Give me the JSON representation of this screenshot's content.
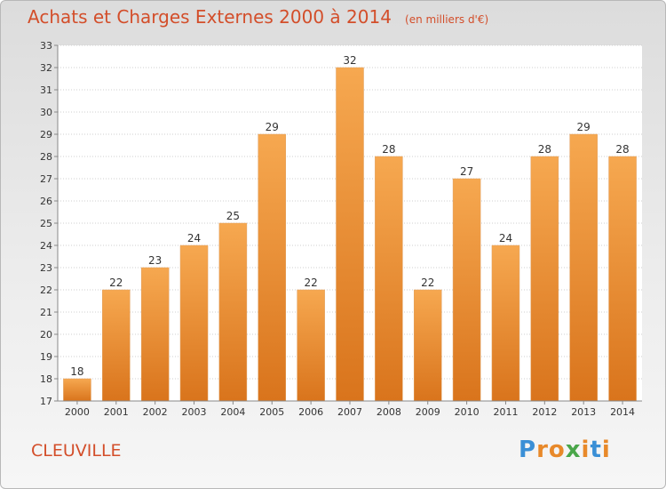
{
  "header": {
    "title": "Achats et Charges Externes 2000 à 2014",
    "unit": "(en milliers d'€)"
  },
  "commune": "CLEUVILLE",
  "logo": {
    "text": "Proxiti",
    "letter_colors": [
      "#3a8fd6",
      "#e8892a",
      "#e8892a",
      "#4aa64a",
      "#e8892a",
      "#3a8fd6",
      "#e8892a"
    ]
  },
  "colors": {
    "accent": "#d34e2a",
    "bar_top": "#f6a850",
    "bar_bottom": "#d9741c",
    "grid": "#cfcfcf"
  },
  "chart_data": {
    "type": "bar",
    "title": "Achats et Charges Externes 2000 à 2014",
    "unit": "(en milliers d'€)",
    "categories": [
      "2000",
      "2001",
      "2002",
      "2003",
      "2004",
      "2005",
      "2006",
      "2007",
      "2008",
      "2009",
      "2010",
      "2011",
      "2012",
      "2013",
      "2014"
    ],
    "values": [
      18,
      22,
      23,
      24,
      25,
      29,
      22,
      32,
      28,
      22,
      27,
      24,
      28,
      29,
      28
    ],
    "ylim": [
      17,
      33
    ],
    "yticks": [
      17,
      18,
      19,
      20,
      21,
      22,
      23,
      24,
      25,
      26,
      27,
      28,
      29,
      30,
      31,
      32,
      33
    ],
    "grid": true,
    "data_labels": true
  }
}
